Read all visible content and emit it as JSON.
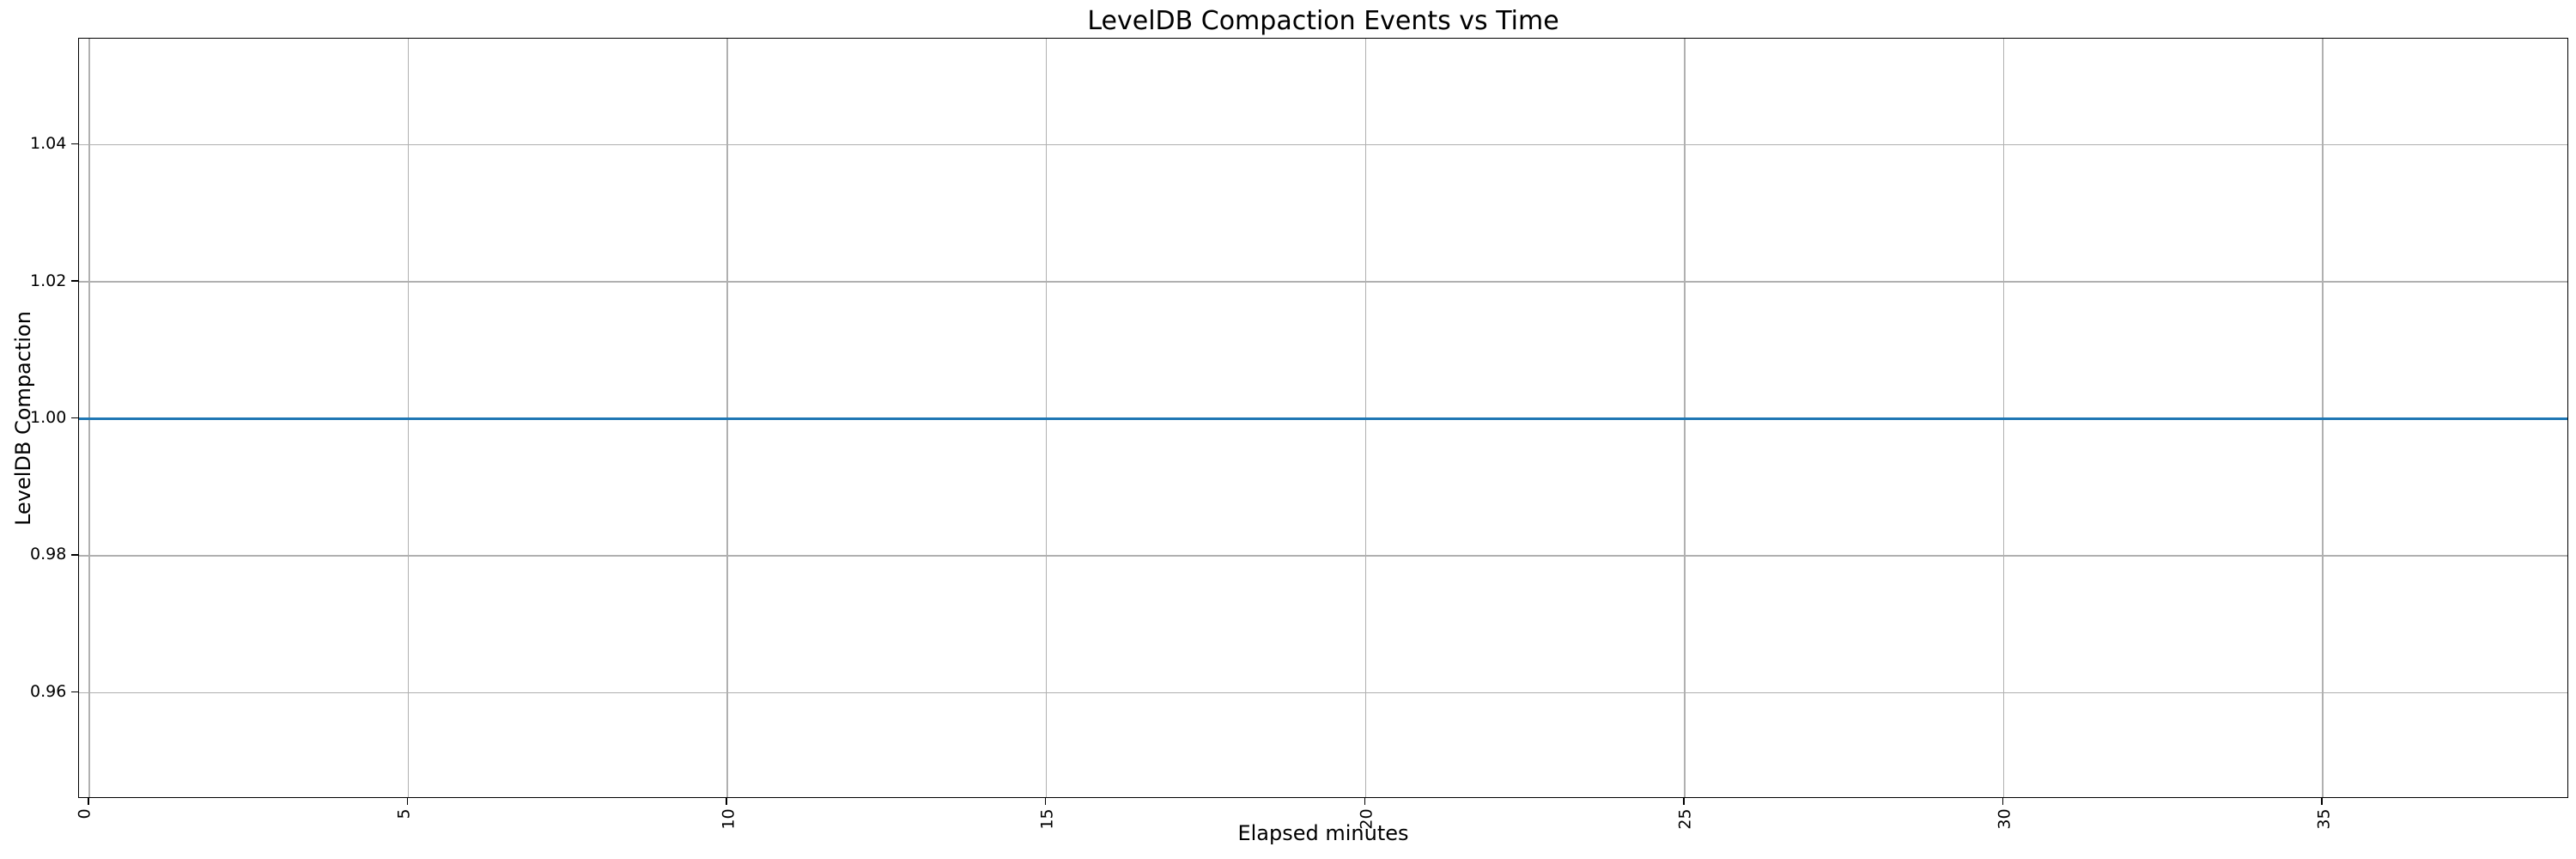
{
  "chart_data": {
    "type": "line",
    "title": "LevelDB Compaction Events vs Time",
    "xlabel": "Elapsed minutes",
    "ylabel": "LevelDB Compaction",
    "x_ticks": [
      0,
      5,
      10,
      15,
      20,
      25,
      30,
      35
    ],
    "x_tick_labels": [
      "0",
      "5",
      "10",
      "15",
      "20",
      "25",
      "30",
      "35"
    ],
    "x_tick_label_rotation_deg": 90,
    "y_ticks": [
      0.96,
      0.98,
      1.0,
      1.02,
      1.04
    ],
    "y_tick_labels": [
      "0.96",
      "0.98",
      "1.00",
      "1.02",
      "1.04"
    ],
    "xlim": [
      -0.16,
      38.86
    ],
    "ylim": [
      0.9445,
      1.0555
    ],
    "grid": true,
    "legend": "none",
    "series": [
      {
        "name": "LevelDB Compaction",
        "y_constant": 1.0,
        "spans_full_x_range": true,
        "color": "#1f77b4"
      }
    ],
    "colors": {
      "line": "#1f77b4",
      "grid": "#b0b0b0",
      "spine": "#000000",
      "text": "#000000",
      "background": "#ffffff"
    }
  }
}
